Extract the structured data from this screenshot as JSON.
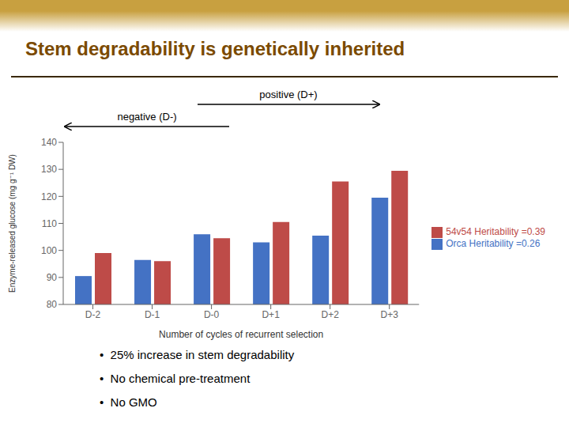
{
  "chart_data": {
    "type": "bar",
    "title": "Stem degradability is genetically inherited",
    "categories": [
      "D-2",
      "D-1",
      "D-0",
      "D+1",
      "D+2",
      "D+3"
    ],
    "series": [
      {
        "name": "Orca    Heritability =0.26",
        "color": "#4472C4",
        "values": [
          90.5,
          96.5,
          106.0,
          103.0,
          105.5,
          119.5
        ]
      },
      {
        "name": "54v54  Heritability =0.39",
        "color": "#BE4B48",
        "values": [
          99.0,
          96.0,
          104.5,
          110.5,
          125.5,
          129.5
        ]
      }
    ],
    "xlabel": "Number of cycles of recurrent selection",
    "ylabel": "Enzyme-released glucose (mg g⁻¹ DW)",
    "ylim": [
      80,
      140
    ],
    "yticks": [
      80,
      90,
      100,
      110,
      120,
      130,
      140
    ],
    "grid": false,
    "legend": "right",
    "annotations": [
      "positive (D+)",
      "negative (D-)"
    ],
    "bullet_points": [
      "•  25% increase in stem degradability",
      "•  No chemical pre-treatment",
      "•  No GMO"
    ]
  }
}
